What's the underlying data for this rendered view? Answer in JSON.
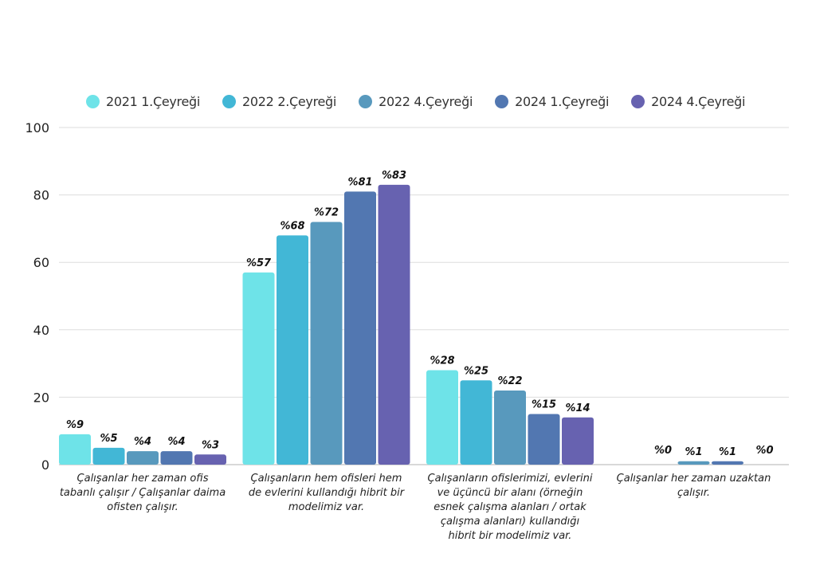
{
  "chart_data": {
    "type": "bar",
    "title": "",
    "xlabel": "",
    "ylabel": "",
    "ylim": [
      0,
      100
    ],
    "yticks": [
      "0",
      "20",
      "40",
      "60",
      "80",
      "100"
    ],
    "grid": true,
    "legend_position": "top",
    "categories": [
      "Çalışanlar her zaman ofis tabanlı çalışır / Çalışanlar daima ofisten çalışır.",
      "Çalışanların hem ofisleri hem de evlerini kullandığı hibrit bir modelimiz var.",
      "Çalışanların ofislerimizi, evlerini ve üçüncü bir alanı (örneğin esnek çalışma alanları / ortak çalışma alanları) kullandığı hibrit bir modelimiz var.",
      "Çalışanlar her zaman uzaktan çalışır."
    ],
    "series": [
      {
        "name": "2021 1.Çeyreği",
        "color": "#6ee3e8",
        "values": [
          9,
          57,
          28,
          null
        ],
        "labels": [
          "%9",
          "%57",
          "%28",
          ""
        ]
      },
      {
        "name": "2022 2.Çeyreği",
        "color": "#42b7d6",
        "values": [
          5,
          68,
          25,
          0
        ],
        "labels": [
          "%5",
          "%68",
          "%25",
          "%0"
        ]
      },
      {
        "name": "2022 4.Çeyreği",
        "color": "#5899bd",
        "values": [
          4,
          72,
          22,
          1
        ],
        "labels": [
          "%4",
          "%72",
          "%22",
          "%1"
        ]
      },
      {
        "name": "2024 1.Çeyreği",
        "color": "#5277b1",
        "values": [
          4,
          81,
          15,
          1
        ],
        "labels": [
          "%4",
          "%81",
          "%15",
          "%1"
        ]
      },
      {
        "name": "2024 4.Çeyreği",
        "color": "#6762b0",
        "values": [
          3,
          83,
          14,
          0
        ],
        "labels": [
          "%3",
          "%83",
          "%14",
          "%0"
        ]
      }
    ]
  }
}
